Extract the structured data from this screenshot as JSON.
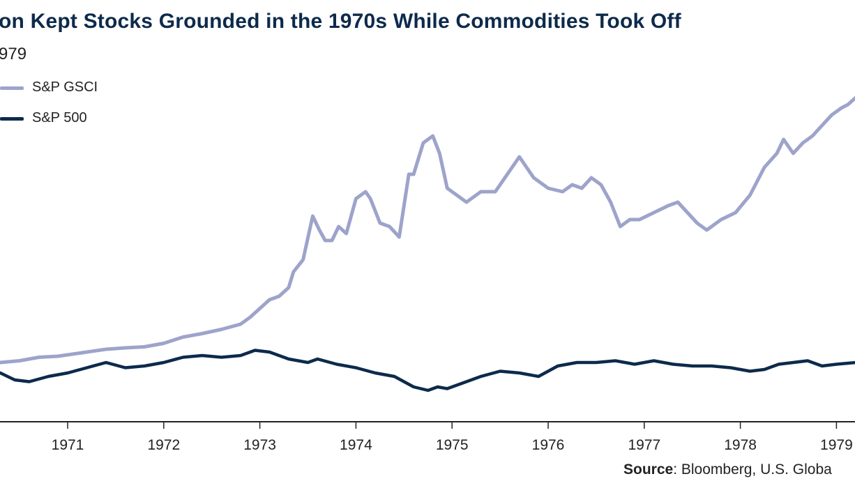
{
  "title": "on Kept Stocks Grounded in the 1970s While Commodities Took Off",
  "subtitle": "979",
  "source_label": "Source",
  "source_text": ": Bloomberg, U.S. Globa",
  "colors": {
    "gsci": "#9ea3cb",
    "sp500": "#0d2a4b",
    "title": "#0d2a4b",
    "axis": "#222222"
  },
  "chart_data": {
    "type": "line",
    "title": "on Kept Stocks Grounded in the 1970s While Commodities Took Off",
    "subtitle": "979",
    "xlabel": "",
    "ylabel": "",
    "x_ticks": [
      "1971",
      "1972",
      "1973",
      "1974",
      "1975",
      "1976",
      "1977",
      "1978",
      "1979"
    ],
    "xlim": [
      1970.3,
      1979.2
    ],
    "ylim": [
      0,
      100
    ],
    "grid": false,
    "legend_position": "top-left",
    "series": [
      {
        "name": "S&P GSCI",
        "color": "#9ea3cb",
        "x": [
          1970.3,
          1970.5,
          1970.7,
          1970.9,
          1971.0,
          1971.2,
          1971.4,
          1971.6,
          1971.8,
          1972.0,
          1972.2,
          1972.4,
          1972.6,
          1972.8,
          1972.9,
          1973.0,
          1973.1,
          1973.2,
          1973.3,
          1973.35,
          1973.45,
          1973.55,
          1973.62,
          1973.68,
          1973.75,
          1973.82,
          1973.9,
          1974.0,
          1974.1,
          1974.15,
          1974.25,
          1974.35,
          1974.45,
          1974.55,
          1974.6,
          1974.7,
          1974.8,
          1974.87,
          1974.95,
          1975.05,
          1975.15,
          1975.3,
          1975.45,
          1975.6,
          1975.7,
          1975.85,
          1976.0,
          1976.15,
          1976.25,
          1976.35,
          1976.45,
          1976.55,
          1976.65,
          1976.75,
          1976.85,
          1976.95,
          1977.1,
          1977.25,
          1977.35,
          1977.45,
          1977.55,
          1977.65,
          1977.8,
          1977.95,
          1978.1,
          1978.25,
          1978.38,
          1978.45,
          1978.55,
          1978.65,
          1978.75,
          1978.85,
          1978.95,
          1979.05,
          1979.12,
          1979.2
        ],
        "values": [
          14,
          14.5,
          15.5,
          15.8,
          16.2,
          17,
          17.8,
          18.2,
          18.5,
          19.5,
          21.3,
          22.3,
          23.5,
          25,
          27,
          29.5,
          32,
          33,
          35.5,
          40,
          43.5,
          56,
          52,
          49,
          49,
          53,
          51,
          61,
          63,
          61,
          54,
          53,
          50,
          68,
          68,
          77,
          79,
          74,
          64,
          62,
          60,
          63,
          63,
          69,
          73,
          67,
          64,
          63,
          65,
          64,
          67,
          65,
          60,
          53,
          55,
          55,
          57,
          59,
          60,
          57,
          54,
          52,
          55,
          57,
          62,
          70,
          74,
          78,
          74,
          77,
          79,
          82,
          85,
          87,
          88,
          90
        ]
      },
      {
        "name": "S&P 500",
        "color": "#0d2a4b",
        "x": [
          1970.3,
          1970.45,
          1970.6,
          1970.8,
          1971.0,
          1971.2,
          1971.4,
          1971.6,
          1971.8,
          1972.0,
          1972.2,
          1972.4,
          1972.6,
          1972.8,
          1972.95,
          1973.1,
          1973.3,
          1973.5,
          1973.6,
          1973.8,
          1974.0,
          1974.2,
          1974.4,
          1974.6,
          1974.75,
          1974.85,
          1974.95,
          1975.1,
          1975.3,
          1975.5,
          1975.7,
          1975.9,
          1976.1,
          1976.3,
          1976.5,
          1976.7,
          1976.9,
          1977.1,
          1977.3,
          1977.5,
          1977.7,
          1977.9,
          1978.1,
          1978.25,
          1978.4,
          1978.55,
          1978.7,
          1978.85,
          1979.0,
          1979.2
        ],
        "values": [
          11,
          9,
          8.5,
          10,
          11,
          12.5,
          14,
          12.5,
          13,
          14,
          15.5,
          16,
          15.5,
          16,
          17.5,
          17,
          15,
          14,
          15,
          13.5,
          12.5,
          11,
          10,
          7,
          6,
          7,
          6.5,
          8,
          10,
          11.5,
          11,
          10,
          13,
          14,
          14,
          14.5,
          13.5,
          14.5,
          13.5,
          13,
          13,
          12.5,
          11.5,
          12,
          13.5,
          14,
          14.5,
          13,
          13.5,
          14
        ]
      }
    ]
  }
}
